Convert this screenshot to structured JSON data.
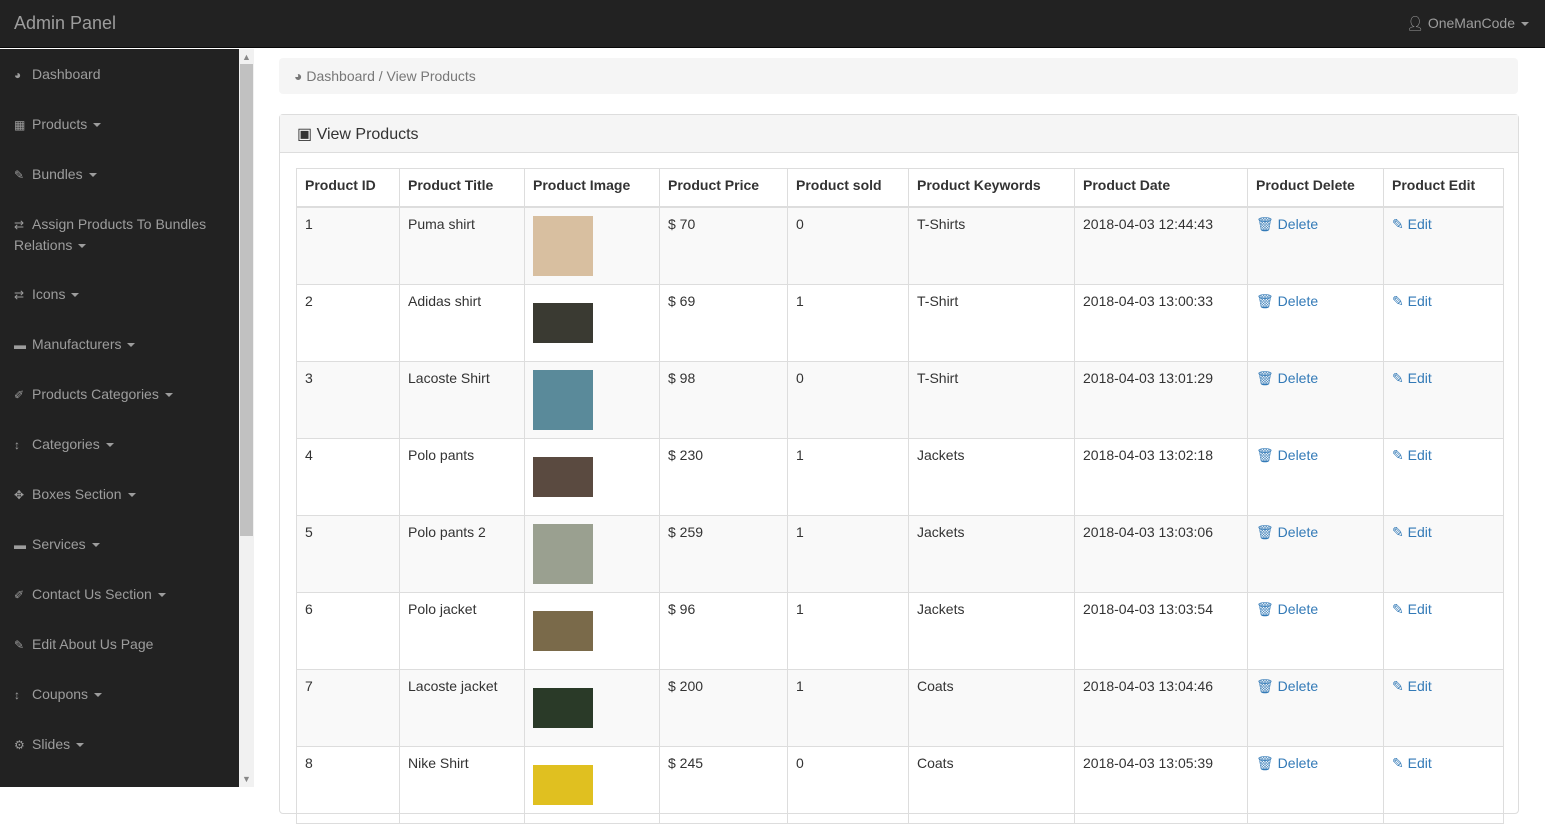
{
  "header": {
    "brand": "Admin Panel",
    "user": "OneManCode"
  },
  "breadcrumb": {
    "home": "Dashboard",
    "separator": " / ",
    "current": "View Products"
  },
  "sidebar": {
    "items": [
      {
        "label": "Dashboard",
        "icon": "dashboard-icon",
        "glyph": "◕",
        "caret": false
      },
      {
        "label": "Products",
        "icon": "table-icon",
        "glyph": "▦",
        "caret": true
      },
      {
        "label": "Bundles",
        "icon": "edit-icon",
        "glyph": "✎",
        "caret": true
      },
      {
        "label": "Assign Products To Bundles Relations",
        "icon": "retweet-icon",
        "glyph": "⇄",
        "caret": true
      },
      {
        "label": "Icons",
        "icon": "retweet-icon",
        "glyph": "⇄",
        "caret": true
      },
      {
        "label": "Manufacturers",
        "icon": "briefcase-icon",
        "glyph": "▬",
        "caret": true
      },
      {
        "label": "Products Categories",
        "icon": "pencil-icon",
        "glyph": "✐",
        "caret": true
      },
      {
        "label": "Categories",
        "icon": "arrows-v-icon",
        "glyph": "↕",
        "caret": true
      },
      {
        "label": "Boxes Section",
        "icon": "arrows-icon",
        "glyph": "✥",
        "caret": true
      },
      {
        "label": "Services",
        "icon": "briefcase-icon",
        "glyph": "▬",
        "caret": true
      },
      {
        "label": "Contact Us Section",
        "icon": "pencil-icon",
        "glyph": "✐",
        "caret": true
      },
      {
        "label": "Edit About Us Page",
        "icon": "edit-icon",
        "glyph": "✎",
        "caret": false
      },
      {
        "label": "Coupons",
        "icon": "arrows-v-icon",
        "glyph": "↕",
        "caret": true
      },
      {
        "label": "Slides",
        "icon": "gear-icon",
        "glyph": "⚙",
        "caret": true
      }
    ]
  },
  "panel": {
    "title": "View Products",
    "icon": "money-icon"
  },
  "table": {
    "columns": [
      "Product ID",
      "Product Title",
      "Product Image",
      "Product Price",
      "Product sold",
      "Product Keywords",
      "Product Date",
      "Product Delete",
      "Product Edit"
    ],
    "delete_label": "Delete",
    "edit_label": "Edit",
    "rows": [
      {
        "id": "1",
        "title": "Puma shirt",
        "price": "$ 70",
        "sold": "0",
        "keywords": "T-Shirts",
        "date": "2018-04-03 12:44:43",
        "img": "#d8bfa0"
      },
      {
        "id": "2",
        "title": "Adidas shirt",
        "price": "$ 69",
        "sold": "1",
        "keywords": "T-Shirt",
        "date": "2018-04-03 13:00:33",
        "img": "#3a3a32"
      },
      {
        "id": "3",
        "title": "Lacoste Shirt",
        "price": "$ 98",
        "sold": "0",
        "keywords": "T-Shirt",
        "date": "2018-04-03 13:01:29",
        "img": "#5a8a9a"
      },
      {
        "id": "4",
        "title": "Polo pants",
        "price": "$ 230",
        "sold": "1",
        "keywords": "Jackets",
        "date": "2018-04-03 13:02:18",
        "img": "#5a4a40"
      },
      {
        "id": "5",
        "title": "Polo pants 2",
        "price": "$ 259",
        "sold": "1",
        "keywords": "Jackets",
        "date": "2018-04-03 13:03:06",
        "img": "#9aa090"
      },
      {
        "id": "6",
        "title": "Polo jacket",
        "price": "$ 96",
        "sold": "1",
        "keywords": "Jackets",
        "date": "2018-04-03 13:03:54",
        "img": "#7a6a4a"
      },
      {
        "id": "7",
        "title": "Lacoste jacket",
        "price": "$ 200",
        "sold": "1",
        "keywords": "Coats",
        "date": "2018-04-03 13:04:46",
        "img": "#2a3a28"
      },
      {
        "id": "8",
        "title": "Nike Shirt",
        "price": "$ 245",
        "sold": "0",
        "keywords": "Coats",
        "date": "2018-04-03 13:05:39",
        "img": "#e0c020"
      }
    ]
  }
}
